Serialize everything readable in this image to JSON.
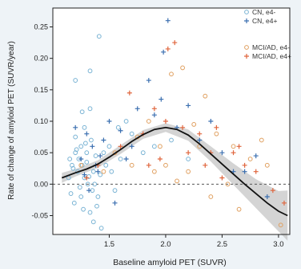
{
  "chart_data": {
    "type": "scatter",
    "title": "",
    "xlabel": "Baseline amyloid PET (SUVR)",
    "ylabel": "Rate of change of amyloid PET (SUVR/year)",
    "xlim": [
      1.0,
      3.1
    ],
    "ylim": [
      -0.08,
      0.28
    ],
    "x_ticks": [
      "1.5",
      "2.0",
      "2.5",
      "3.0"
    ],
    "x_tick_values": [
      1.5,
      2.0,
      2.5,
      3.0
    ],
    "y_ticks": [
      "-0.05",
      "0.00",
      "0.05",
      "0.10",
      "0.15",
      "0.20",
      "0.25"
    ],
    "y_tick_values": [
      -0.05,
      0.0,
      0.05,
      0.1,
      0.15,
      0.2,
      0.25
    ],
    "grid": false,
    "legend_position": "top-right",
    "reference_line": {
      "y": 0.0,
      "style": "dashed"
    },
    "series": [
      {
        "name": "CN, e4-",
        "marker": "circle",
        "color": "#79b3d4",
        "points": [
          [
            1.2,
            0.165
          ],
          [
            1.33,
            0.18
          ],
          [
            1.41,
            0.235
          ],
          [
            1.2,
            0.075
          ],
          [
            1.25,
            0.06
          ],
          [
            1.3,
            0.05
          ],
          [
            1.15,
            0.04
          ],
          [
            1.18,
            0.025
          ],
          [
            1.22,
            0.02
          ],
          [
            1.28,
            0.01
          ],
          [
            1.31,
            0.0
          ],
          [
            1.24,
            -0.005
          ],
          [
            1.35,
            -0.01
          ],
          [
            1.4,
            -0.02
          ],
          [
            1.19,
            -0.03
          ],
          [
            1.27,
            -0.04
          ],
          [
            1.33,
            -0.045
          ],
          [
            1.26,
            0.03
          ],
          [
            1.3,
            0.035
          ],
          [
            1.36,
            0.02
          ],
          [
            1.42,
            0.015
          ],
          [
            1.45,
            0.05
          ],
          [
            1.5,
            0.06
          ],
          [
            1.21,
            0.055
          ],
          [
            1.14,
            0.01
          ],
          [
            1.16,
            -0.015
          ],
          [
            1.23,
            0.04
          ],
          [
            1.29,
            0.065
          ],
          [
            1.34,
            0.07
          ],
          [
            1.38,
            0.045
          ],
          [
            1.47,
            0.03
          ],
          [
            1.52,
            0.02
          ],
          [
            1.6,
            0.04
          ],
          [
            1.55,
            -0.01
          ],
          [
            1.25,
            -0.02
          ],
          [
            1.32,
            0.012
          ],
          [
            1.37,
            0.0
          ],
          [
            1.39,
            -0.035
          ],
          [
            1.2,
            0.05
          ],
          [
            1.17,
            0.03
          ],
          [
            1.43,
            -0.07
          ],
          [
            1.36,
            -0.06
          ],
          [
            1.7,
            0.08
          ],
          [
            1.8,
            0.05
          ],
          [
            1.9,
            0.06
          ],
          [
            2.05,
            0.07
          ],
          [
            2.2,
            0.04
          ],
          [
            1.65,
            0.1
          ],
          [
            1.58,
            0.09
          ],
          [
            1.28,
            0.09
          ],
          [
            1.26,
            0.115
          ],
          [
            1.33,
            0.12
          ]
        ]
      },
      {
        "name": "CN, e4+",
        "marker": "cross",
        "color": "#3b6fb0",
        "points": [
          [
            2.02,
            0.26
          ],
          [
            1.85,
            0.165
          ],
          [
            1.98,
            0.21
          ],
          [
            1.96,
            0.135
          ],
          [
            1.2,
            0.09
          ],
          [
            1.3,
            0.08
          ],
          [
            1.35,
            0.06
          ],
          [
            1.25,
            0.04
          ],
          [
            1.28,
            0.015
          ],
          [
            1.4,
            0.02
          ],
          [
            1.45,
            0.07
          ],
          [
            1.5,
            0.1
          ],
          [
            1.6,
            0.085
          ],
          [
            1.7,
            0.06
          ],
          [
            1.75,
            0.12
          ],
          [
            1.9,
            0.11
          ],
          [
            2.1,
            0.09
          ],
          [
            2.3,
            0.07
          ],
          [
            2.5,
            0.05
          ],
          [
            2.6,
            0.02
          ],
          [
            2.4,
            0.1
          ],
          [
            2.2,
            0.125
          ],
          [
            1.55,
            -0.03
          ],
          [
            1.32,
            -0.01
          ],
          [
            1.38,
            0.03
          ],
          [
            1.42,
            0.045
          ],
          [
            2.8,
            0.045
          ],
          [
            2.9,
            -0.02
          ],
          [
            2.7,
            0.02
          ],
          [
            1.65,
            0.04
          ]
        ]
      },
      {
        "name": "MCI/AD, e4-",
        "marker": "circle",
        "color": "#e0a060",
        "points": [
          [
            2.15,
            0.185
          ],
          [
            2.05,
            0.175
          ],
          [
            2.35,
            0.14
          ],
          [
            1.85,
            0.1
          ],
          [
            1.95,
            0.06
          ],
          [
            2.0,
            0.03
          ],
          [
            2.25,
            0.095
          ],
          [
            2.45,
            0.08
          ],
          [
            2.6,
            0.06
          ],
          [
            2.75,
            0.04
          ],
          [
            2.9,
            0.03
          ],
          [
            3.02,
            -0.065
          ],
          [
            2.55,
            0.0
          ],
          [
            2.4,
            -0.02
          ],
          [
            2.65,
            -0.04
          ],
          [
            1.75,
            0.075
          ],
          [
            1.55,
            0.05
          ],
          [
            1.45,
            0.02
          ],
          [
            1.25,
            0.03
          ],
          [
            2.2,
            0.02
          ],
          [
            2.3,
            0.06
          ],
          [
            1.7,
            0.03
          ],
          [
            2.85,
            0.07
          ],
          [
            1.9,
            0.02
          ],
          [
            2.1,
            0.005
          ]
        ]
      },
      {
        "name": "MCI/AD, e4+",
        "marker": "cross",
        "color": "#e0653c",
        "points": [
          [
            2.02,
            0.215
          ],
          [
            2.08,
            0.225
          ],
          [
            1.68,
            0.145
          ],
          [
            1.9,
            0.12
          ],
          [
            1.8,
            0.08
          ],
          [
            2.0,
            0.1
          ],
          [
            2.15,
            0.09
          ],
          [
            2.3,
            0.08
          ],
          [
            2.45,
            0.09
          ],
          [
            2.6,
            0.05
          ],
          [
            2.7,
            0.03
          ],
          [
            2.8,
            0.02
          ],
          [
            2.95,
            -0.01
          ],
          [
            3.05,
            -0.03
          ],
          [
            2.5,
            0.01
          ],
          [
            1.6,
            0.06
          ],
          [
            1.4,
            0.03
          ],
          [
            1.3,
            0.01
          ],
          [
            2.2,
            0.05
          ],
          [
            2.35,
            0.03
          ],
          [
            1.95,
            0.04
          ],
          [
            2.65,
            0.06
          ],
          [
            2.4,
            0.05
          ],
          [
            1.85,
            0.03
          ]
        ]
      }
    ],
    "fit_line": {
      "x": [
        1.08,
        1.2,
        1.3,
        1.4,
        1.5,
        1.6,
        1.7,
        1.8,
        1.9,
        2.0,
        2.1,
        2.2,
        2.3,
        2.4,
        2.5,
        2.6,
        2.7,
        2.8,
        2.9,
        3.0,
        3.08
      ],
      "y": [
        0.01,
        0.018,
        0.024,
        0.032,
        0.043,
        0.055,
        0.068,
        0.079,
        0.087,
        0.09,
        0.087,
        0.078,
        0.064,
        0.048,
        0.032,
        0.016,
        0.0,
        -0.015,
        -0.03,
        -0.043,
        -0.05
      ]
    },
    "fit_band": {
      "x": [
        1.08,
        1.2,
        1.4,
        1.6,
        1.8,
        2.0,
        2.2,
        2.4,
        2.6,
        2.8,
        3.0,
        3.08
      ],
      "lower": [
        0.002,
        0.012,
        0.026,
        0.048,
        0.072,
        0.083,
        0.069,
        0.036,
        -0.001,
        -0.038,
        -0.075,
        -0.09
      ],
      "upper": [
        0.018,
        0.024,
        0.038,
        0.062,
        0.086,
        0.097,
        0.087,
        0.06,
        0.033,
        0.008,
        -0.011,
        -0.01
      ]
    }
  }
}
